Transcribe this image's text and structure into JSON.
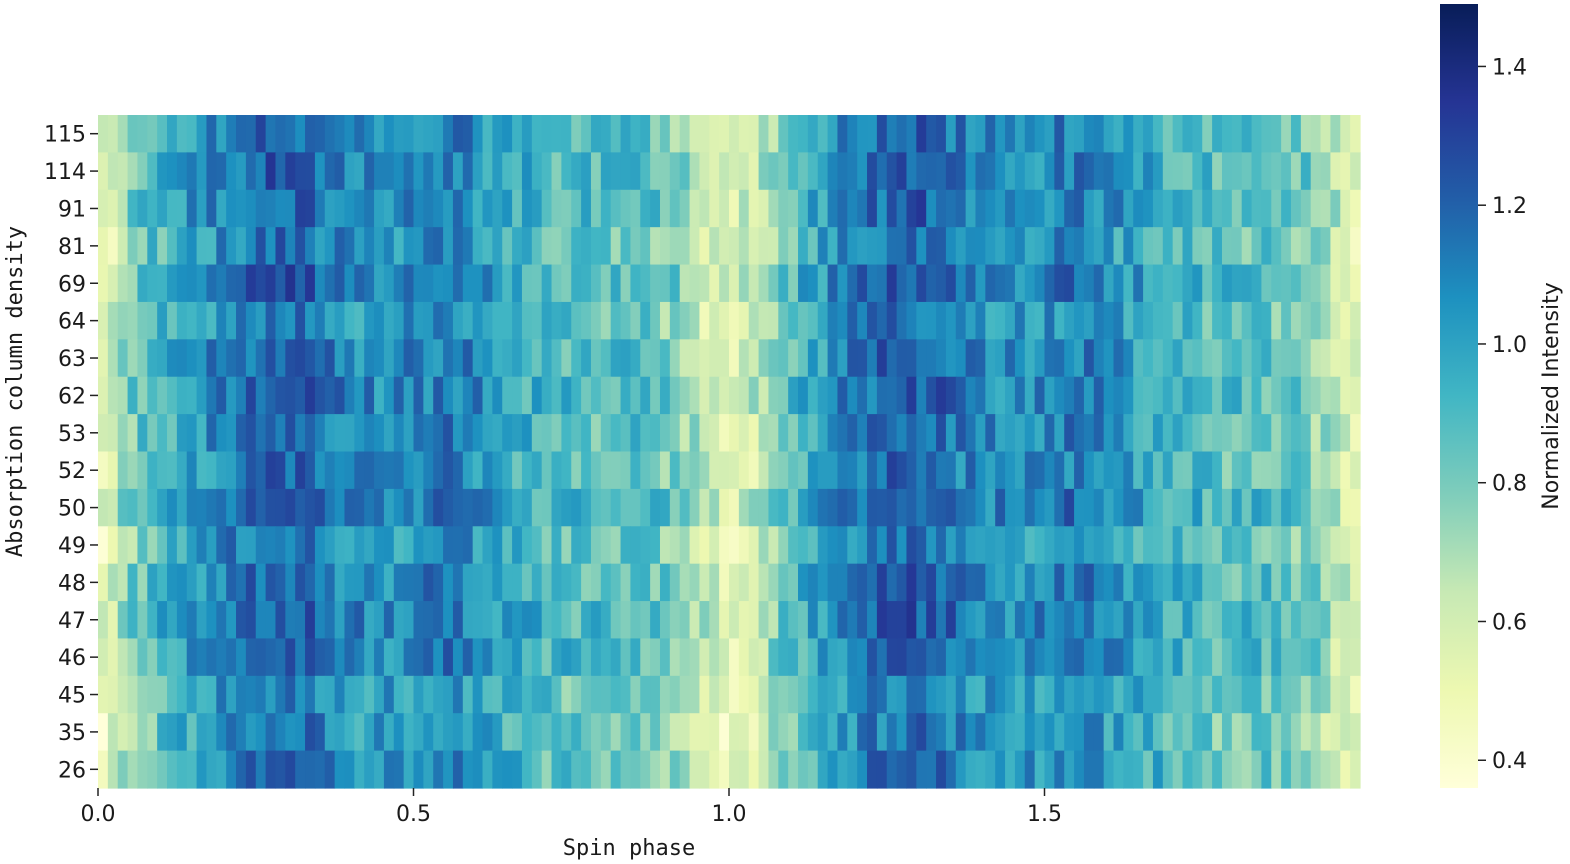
{
  "chart_data": {
    "type": "heatmap",
    "title": "",
    "xlabel": "Spin phase",
    "ylabel": "Absorption column density",
    "colorbar_label": "Normalized Intensity",
    "colormap": "YlGnBu",
    "colormap_stops": [
      "#ffffd9",
      "#edf8b1",
      "#c7e9b4",
      "#7fcdbb",
      "#41b6c4",
      "#1d91c0",
      "#225ea8",
      "#253494",
      "#081d58"
    ],
    "value_range": [
      0.36,
      1.49
    ],
    "xlim": [
      0.0,
      2.0
    ],
    "xticks": [
      0.0,
      0.5,
      1.0,
      1.5
    ],
    "xtick_labels": [
      "0.0",
      "0.5",
      "1.0",
      "1.5"
    ],
    "colorbar_ticks": [
      0.4,
      0.6,
      0.8,
      1.0,
      1.2,
      1.4
    ],
    "colorbar_tick_labels": [
      "0.4",
      "0.6",
      "0.8",
      "1.0",
      "1.2",
      "1.4"
    ],
    "n_phase_bins": 128,
    "rows": [
      "115",
      "114",
      "91",
      "81",
      "69",
      "64",
      "63",
      "62",
      "53",
      "52",
      "50",
      "49",
      "48",
      "47",
      "46",
      "45",
      "35",
      "26"
    ],
    "profile_anchors": {
      "phase": [
        0.0,
        0.02,
        0.06,
        0.12,
        0.2,
        0.27,
        0.33,
        0.4,
        0.47,
        0.55,
        0.62,
        0.7,
        0.78,
        0.86,
        0.92,
        0.96,
        1.0,
        1.04,
        1.08,
        1.14,
        1.2,
        1.27,
        1.33,
        1.4,
        1.47,
        1.55,
        1.62,
        1.7,
        1.78,
        1.86,
        1.92,
        1.97,
        2.0
      ],
      "intensity": [
        0.5,
        0.58,
        0.82,
        0.95,
        1.1,
        1.2,
        1.18,
        1.06,
        1.05,
        1.12,
        1.02,
        0.9,
        0.86,
        0.86,
        0.78,
        0.62,
        0.52,
        0.62,
        0.8,
        0.98,
        1.12,
        1.2,
        1.18,
        1.06,
        1.05,
        1.12,
        1.02,
        0.92,
        0.86,
        0.86,
        0.8,
        0.6,
        0.5
      ]
    }
  }
}
